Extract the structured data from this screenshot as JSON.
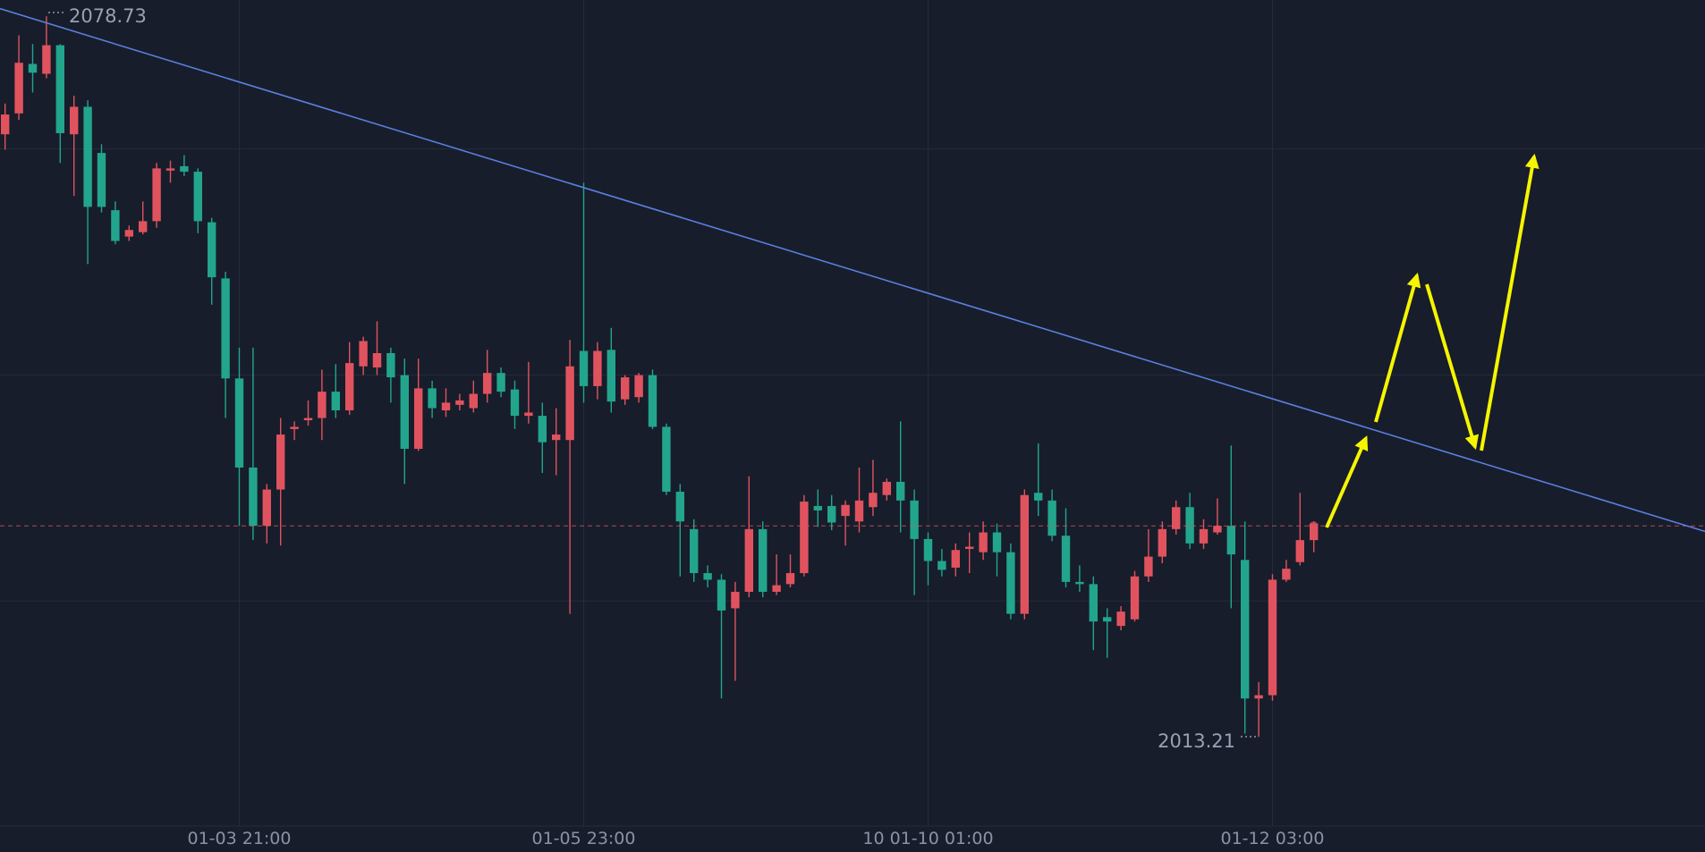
{
  "chart_data": {
    "type": "candlestick",
    "categories": [
      null,
      null,
      null,
      null,
      null,
      null,
      null,
      null,
      null,
      null,
      null,
      null,
      null,
      null,
      null,
      null,
      null,
      "01-03 21:00",
      null,
      null,
      null,
      null,
      null,
      null,
      null,
      null,
      null,
      null,
      null,
      null,
      null,
      null,
      null,
      null,
      null,
      null,
      null,
      null,
      null,
      null,
      null,
      null,
      "01-05 23:00",
      null,
      null,
      null,
      null,
      null,
      null,
      null,
      null,
      null,
      null,
      null,
      null,
      null,
      null,
      null,
      null,
      null,
      null,
      null,
      null,
      null,
      null,
      null,
      null,
      "10 01-10 01:00",
      null,
      null,
      null,
      null,
      null,
      null,
      null,
      null,
      null,
      null,
      null,
      null,
      null,
      null,
      null,
      null,
      null,
      null,
      null,
      null,
      null,
      null,
      null,
      null,
      "01-12 03:00",
      null,
      null,
      null
    ],
    "open": [
      2068.0,
      2069.9,
      2074.4,
      2073.5,
      2076.1,
      2068.0,
      2070.5,
      2066.3,
      2061.1,
      2058.7,
      2059.1,
      2060.1,
      2064.7,
      2065.1,
      2064.6,
      2060.0,
      2054.9,
      2045.8,
      2037.7,
      2032.4,
      2035.7,
      2041.2,
      2042.0,
      2042.2,
      2044.6,
      2042.9,
      2046.9,
      2046.8,
      2048.1,
      2046.1,
      2039.4,
      2044.9,
      2042.9,
      2043.4,
      2043.1,
      2044.4,
      2046.3,
      2044.8,
      2042.4,
      2042.4,
      2040.2,
      2040.2,
      2048.3,
      2045.1,
      2048.4,
      2043.9,
      2044.1,
      2046.1,
      2041.4,
      2035.5,
      2032.1,
      2028.1,
      2027.5,
      2024.9,
      2026.4,
      2032.1,
      2026.4,
      2027.1,
      2028.1,
      2034.2,
      2034.2,
      2033.3,
      2032.8,
      2034.1,
      2035.2,
      2036.4,
      2034.7,
      2031.2,
      2029.2,
      2028.6,
      2030.3,
      2030.0,
      2031.8,
      2030.0,
      2024.4,
      2035.4,
      2034.7,
      2031.5,
      2027.3,
      2027.1,
      2024.1,
      2023.3,
      2023.9,
      2027.8,
      2029.6,
      2032.1,
      2034.1,
      2030.8,
      2031.8,
      2032.4,
      2029.3,
      2016.7,
      2017.0,
      2027.5,
      2029.1,
      2031.1
    ],
    "high": [
      2070.8,
      2077.0,
      2076.2,
      2078.73,
      2076.2,
      2071.5,
      2071.1,
      2067.1,
      2061.9,
      2059.7,
      2061.9,
      2065.4,
      2065.6,
      2066.1,
      2064.9,
      2060.4,
      2055.5,
      2048.6,
      2048.6,
      2036.2,
      2042.2,
      2041.9,
      2043.8,
      2046.6,
      2047.1,
      2049.1,
      2049.6,
      2051.0,
      2048.6,
      2047.6,
      2047.6,
      2045.6,
      2044.9,
      2044.4,
      2045.6,
      2048.4,
      2046.8,
      2045.6,
      2047.3,
      2043.6,
      2043.1,
      2049.3,
      2063.6,
      2049.1,
      2050.4,
      2046.1,
      2046.3,
      2046.6,
      2041.7,
      2036.2,
      2033.0,
      2028.8,
      2028.0,
      2027.3,
      2036.9,
      2032.8,
      2029.8,
      2029.8,
      2035.2,
      2035.7,
      2035.2,
      2034.7,
      2037.7,
      2038.4,
      2036.7,
      2041.9,
      2035.7,
      2031.8,
      2030.3,
      2030.8,
      2031.8,
      2032.8,
      2032.6,
      2030.8,
      2035.7,
      2039.9,
      2035.7,
      2034.0,
      2028.8,
      2027.8,
      2024.9,
      2025.1,
      2028.3,
      2032.1,
      2032.8,
      2034.7,
      2035.4,
      2033.0,
      2034.9,
      2039.7,
      2032.8,
      2018.2,
      2028.0,
      2029.3,
      2035.4,
      2032.8
    ],
    "low": [
      2066.6,
      2069.3,
      2071.8,
      2073.1,
      2065.4,
      2062.4,
      2056.2,
      2060.9,
      2058.0,
      2058.3,
      2058.9,
      2059.5,
      2063.6,
      2064.2,
      2059.0,
      2052.5,
      2042.2,
      2032.4,
      2031.1,
      2030.8,
      2030.6,
      2040.2,
      2041.5,
      2040.2,
      2042.2,
      2042.5,
      2046.1,
      2046.1,
      2043.6,
      2036.2,
      2039.2,
      2042.2,
      2042.3,
      2042.9,
      2042.7,
      2043.6,
      2044.1,
      2041.2,
      2041.7,
      2037.2,
      2037.0,
      2024.4,
      2043.6,
      2043.9,
      2042.7,
      2043.4,
      2043.6,
      2041.2,
      2035.2,
      2027.8,
      2027.3,
      2026.8,
      2016.7,
      2018.3,
      2025.9,
      2025.9,
      2026.1,
      2026.8,
      2027.8,
      2032.3,
      2032.0,
      2030.6,
      2031.8,
      2033.3,
      2034.7,
      2031.8,
      2026.1,
      2027.0,
      2027.8,
      2027.8,
      2028.1,
      2029.3,
      2027.8,
      2023.9,
      2023.9,
      2033.3,
      2031.0,
      2026.8,
      2026.4,
      2021.1,
      2020.4,
      2022.9,
      2023.7,
      2027.3,
      2029.0,
      2031.6,
      2030.3,
      2030.3,
      2031.6,
      2024.9,
      2013.5,
      2013.21,
      2016.5,
      2027.3,
      2028.8,
      2030.0
    ],
    "close": [
      2069.8,
      2074.5,
      2073.6,
      2076.1,
      2068.1,
      2070.5,
      2061.4,
      2061.4,
      2058.3,
      2059.3,
      2060.1,
      2064.9,
      2064.9,
      2064.6,
      2060.1,
      2055.0,
      2045.8,
      2037.7,
      2032.4,
      2035.7,
      2040.7,
      2041.4,
      2042.2,
      2044.6,
      2042.9,
      2047.2,
      2049.2,
      2048.1,
      2045.9,
      2039.4,
      2044.9,
      2043.1,
      2043.6,
      2043.8,
      2044.4,
      2046.3,
      2044.6,
      2042.4,
      2042.7,
      2040.0,
      2040.7,
      2046.9,
      2045.1,
      2048.3,
      2043.7,
      2045.9,
      2046.1,
      2041.4,
      2035.5,
      2032.8,
      2028.1,
      2027.5,
      2024.7,
      2026.4,
      2032.1,
      2026.4,
      2027.0,
      2028.1,
      2034.6,
      2033.8,
      2032.7,
      2034.3,
      2034.7,
      2035.4,
      2036.4,
      2034.7,
      2031.2,
      2029.2,
      2028.4,
      2030.2,
      2030.5,
      2031.8,
      2030.0,
      2024.4,
      2035.2,
      2034.7,
      2031.5,
      2027.3,
      2027.1,
      2023.7,
      2023.7,
      2024.6,
      2027.8,
      2029.6,
      2032.1,
      2034.1,
      2030.8,
      2032.1,
      2032.4,
      2029.8,
      2016.7,
      2017.0,
      2027.5,
      2028.5,
      2031.1,
      2032.6
    ],
    "up_color": "#e0535e",
    "down_color": "#22a58c",
    "ylim": [
      2005.1,
      2080.21
    ],
    "grid": true
  }
}
